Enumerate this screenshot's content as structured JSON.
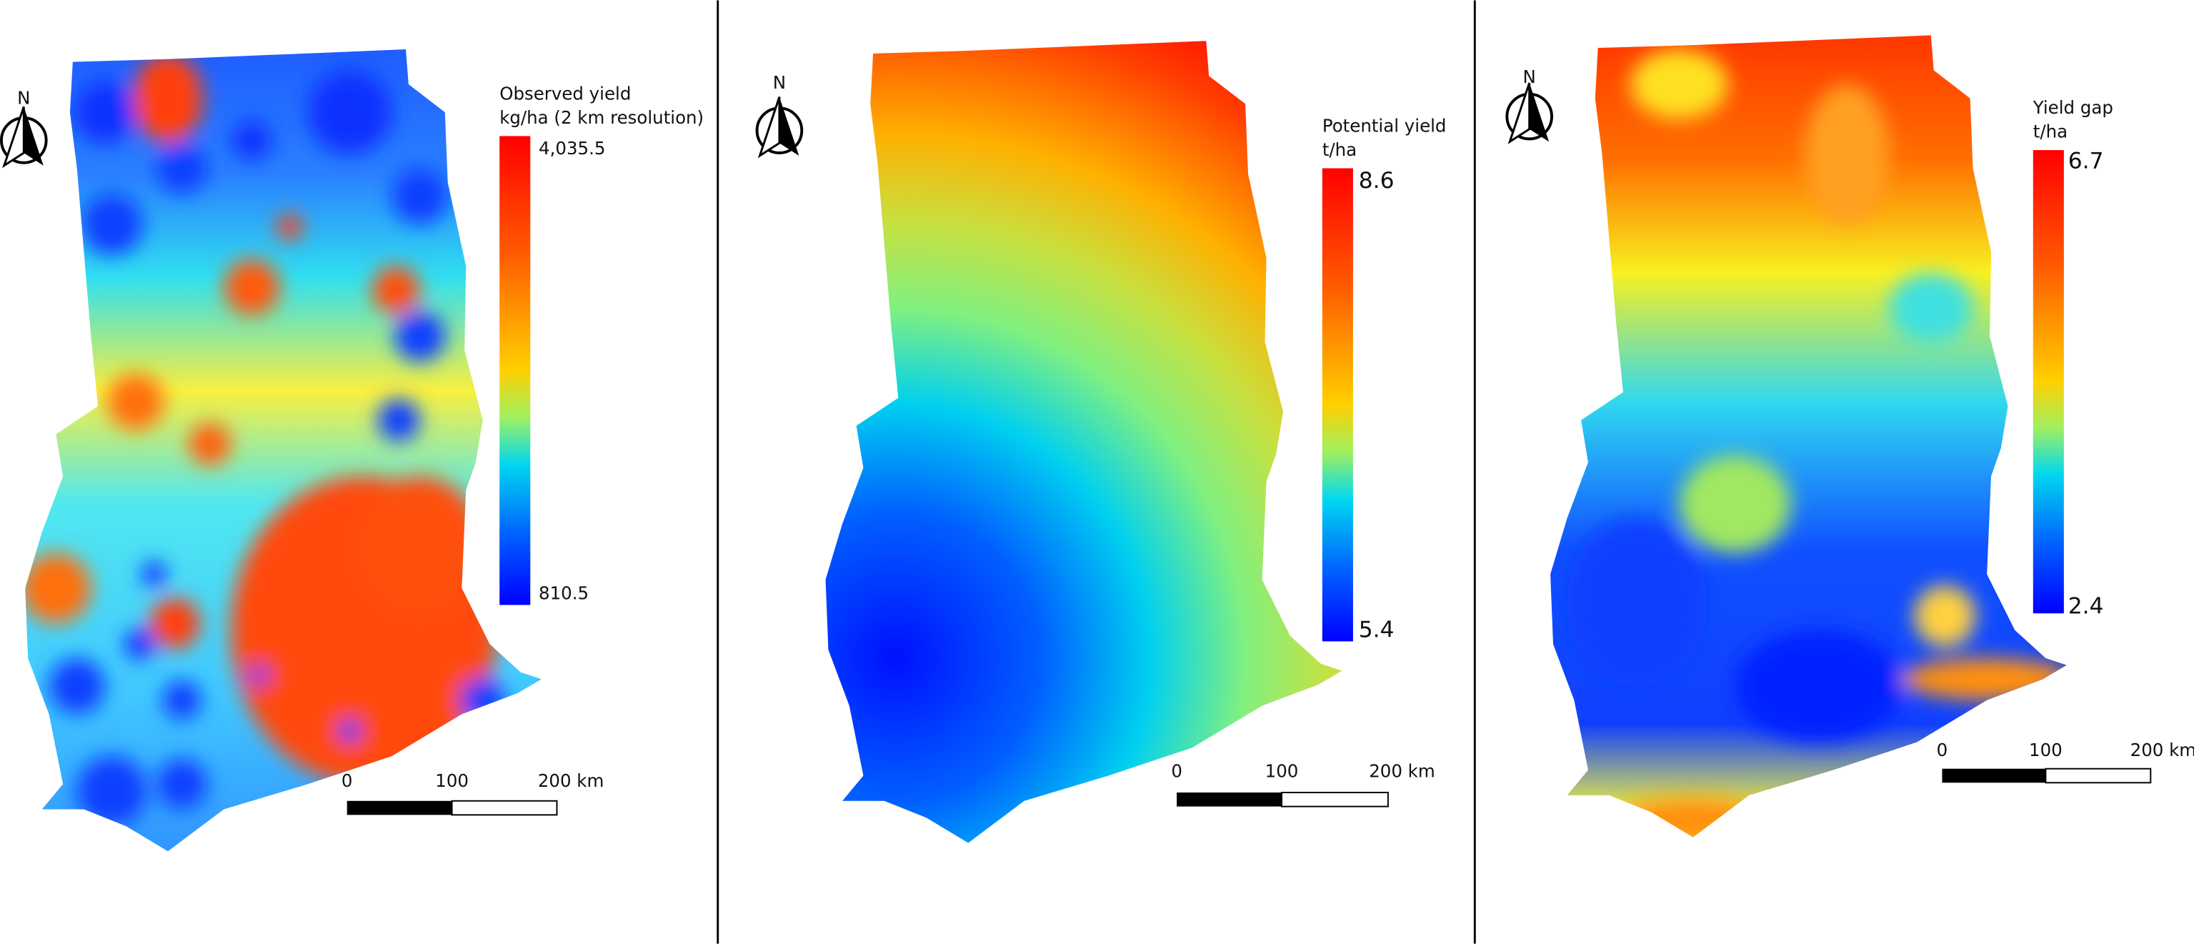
{
  "panels": [
    {
      "legend": {
        "title": [
          "Observed yield",
          "kg/ha (2 km resolution)"
        ],
        "max": "4,035.5",
        "min": "810.5"
      },
      "north": "N",
      "scale": [
        "0",
        "100",
        "200 km"
      ]
    },
    {
      "legend": {
        "title": [
          "Potential yield",
          "t/ha"
        ],
        "max": "8.6",
        "min": "5.4"
      },
      "north": "N",
      "scale": [
        "0",
        "100",
        "200 km"
      ]
    },
    {
      "legend": {
        "title": [
          "Yield gap",
          "t/ha"
        ],
        "max": "6.7",
        "min": "2.4"
      },
      "north": "N",
      "scale": [
        "0",
        "100",
        "200 km"
      ]
    }
  ]
}
